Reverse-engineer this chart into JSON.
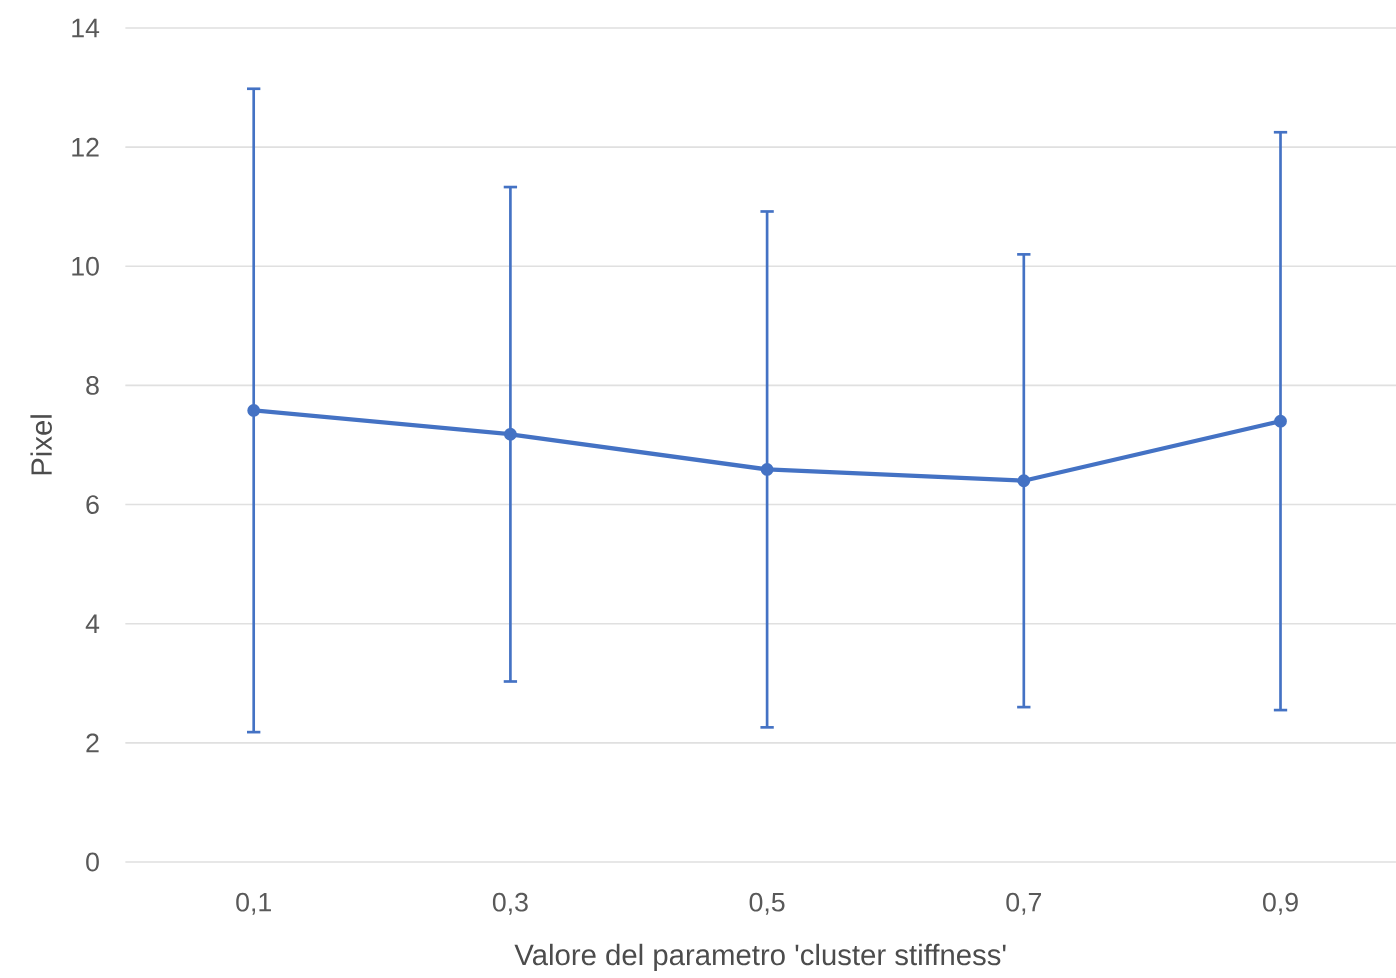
{
  "chart_data": {
    "type": "line",
    "xlabel": "Valore del parametro 'cluster stiffness'",
    "ylabel": "Pixel",
    "categories": [
      "0,1",
      "0,3",
      "0,5",
      "0,7",
      "0,9"
    ],
    "series": [
      {
        "color": "#4472c4",
        "values": [
          7.58,
          7.18,
          6.59,
          6.4,
          7.4
        ],
        "errors": [
          5.4,
          4.15,
          4.33,
          3.8,
          4.85
        ]
      }
    ],
    "ylim": [
      0,
      14
    ],
    "yticks": [
      0,
      2,
      4,
      6,
      8,
      10,
      12,
      14
    ],
    "grid": "y",
    "marker": "circle",
    "line_style": "solid"
  }
}
